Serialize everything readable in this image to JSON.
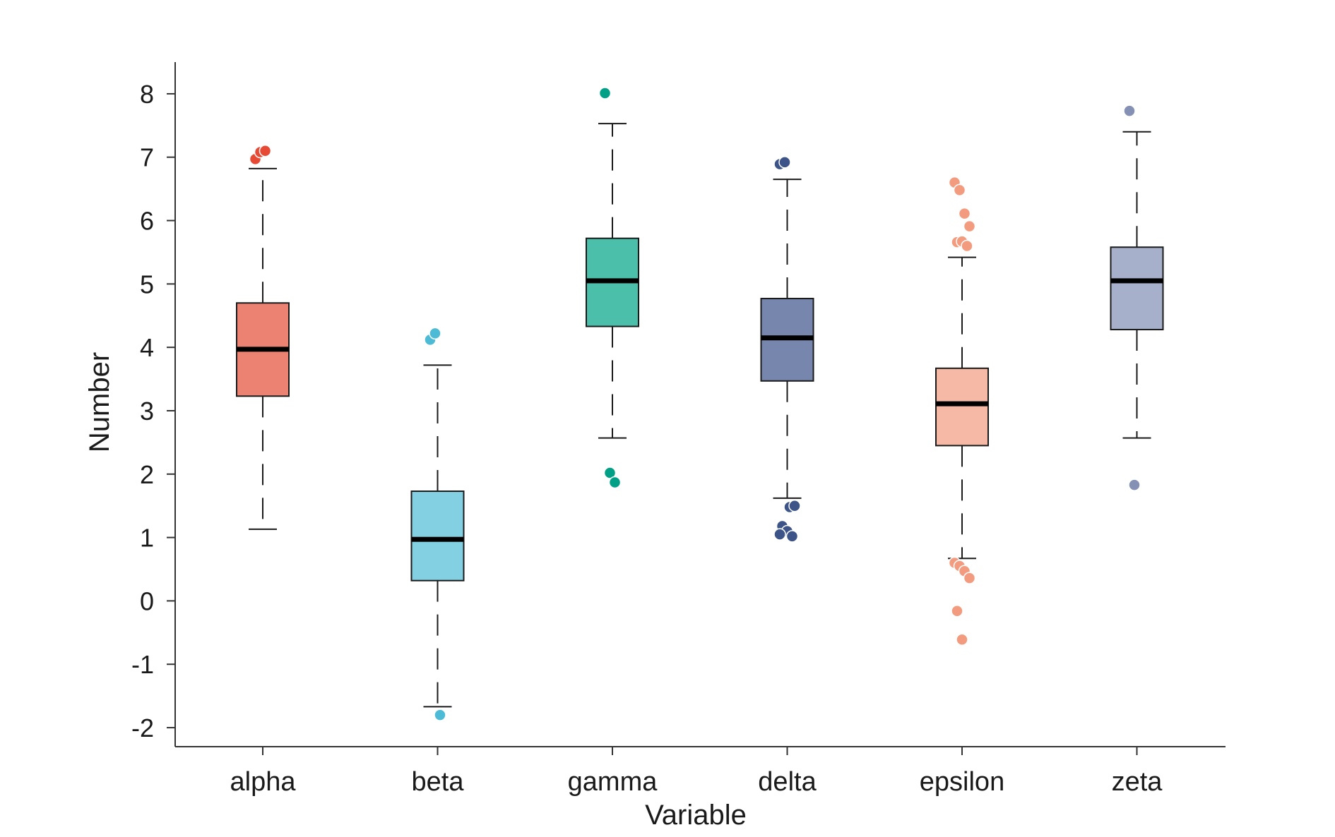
{
  "chart_data": {
    "type": "box",
    "title": "",
    "xlabel": "Variable",
    "ylabel": "Number",
    "ylim": [
      -2.3,
      8.5
    ],
    "yticks": [
      -2,
      -1,
      0,
      1,
      2,
      3,
      4,
      5,
      6,
      7,
      8
    ],
    "ytick_labels": [
      "-2",
      "-1",
      "0",
      "1",
      "2",
      "3",
      "4",
      "5",
      "6",
      "7",
      "8"
    ],
    "grid": false,
    "legend": "none",
    "categories": [
      "alpha",
      "beta",
      "gamma",
      "delta",
      "epsilon",
      "zeta"
    ],
    "boxes": [
      {
        "category": "alpha",
        "whisker_low": 1.13,
        "q1": 3.23,
        "median": 3.97,
        "q3": 4.7,
        "whisker_high": 6.82,
        "outliers": [
          6.97,
          7.08,
          7.1
        ],
        "fill": "#ec8372",
        "point_color": "#e64a35"
      },
      {
        "category": "beta",
        "whisker_low": -1.67,
        "q1": 0.32,
        "median": 0.97,
        "q3": 1.73,
        "whisker_high": 3.72,
        "outliers": [
          4.12,
          4.22,
          -1.8
        ],
        "fill": "#83d0e2",
        "point_color": "#4dbbd5"
      },
      {
        "category": "gamma",
        "whisker_low": 2.57,
        "q1": 4.33,
        "median": 5.05,
        "q3": 5.72,
        "whisker_high": 7.53,
        "outliers": [
          8.01,
          2.02,
          1.87
        ],
        "fill": "#4cbfab",
        "point_color": "#00a087"
      },
      {
        "category": "delta",
        "whisker_low": 1.62,
        "q1": 3.47,
        "median": 4.15,
        "q3": 4.77,
        "whisker_high": 6.65,
        "outliers": [
          6.89,
          6.92,
          1.48,
          1.5,
          1.18,
          1.1,
          1.02,
          1.05
        ],
        "fill": "#7686ac",
        "point_color": "#3c5488"
      },
      {
        "category": "epsilon",
        "whisker_low": 0.67,
        "q1": 2.45,
        "median": 3.11,
        "q3": 3.67,
        "whisker_high": 5.42,
        "outliers": [
          6.6,
          6.48,
          6.11,
          5.91,
          5.66,
          5.67,
          5.6,
          0.6,
          0.55,
          0.47,
          0.36,
          -0.16,
          -0.61
        ],
        "fill": "#f6b9a6",
        "point_color": "#f39b7f"
      },
      {
        "category": "zeta",
        "whisker_low": 2.57,
        "q1": 4.28,
        "median": 5.05,
        "q3": 5.58,
        "whisker_high": 7.4,
        "outliers": [
          7.73,
          1.83
        ],
        "fill": "#a7b0cb",
        "point_color": "#8491b4"
      }
    ]
  }
}
